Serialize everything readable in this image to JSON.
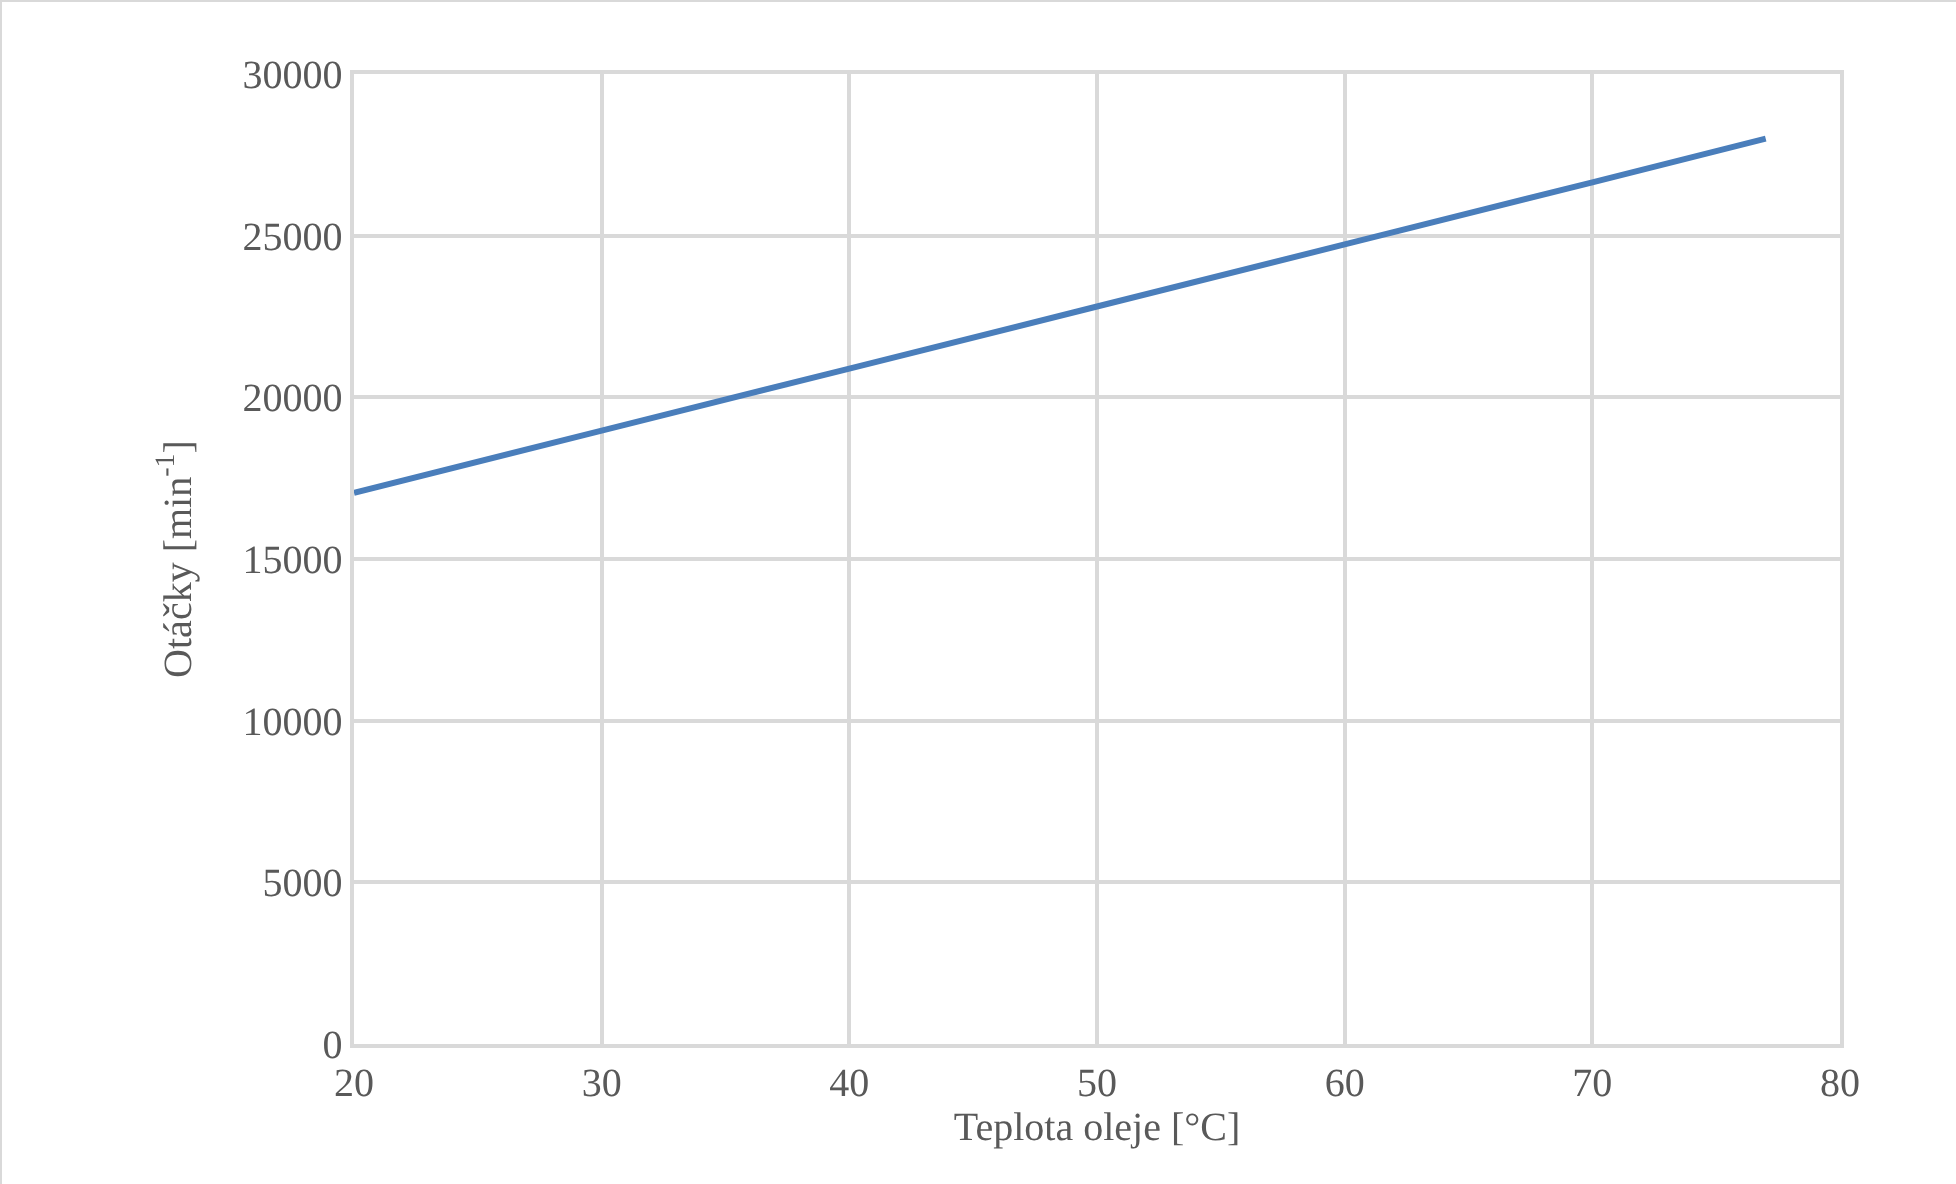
{
  "chart_data": {
    "type": "line",
    "xlabel": "Teplota oleje [°C]",
    "ylabel": "Otáčky [min$^{-1}$]",
    "x": [
      20,
      30,
      40,
      50,
      60,
      70,
      77
    ],
    "series": [
      {
        "color": "#4a7ebb",
        "values": [
          17050,
          18970,
          20890,
          22810,
          24730,
          26650,
          28000
        ]
      }
    ],
    "xlim": [
      20,
      80
    ],
    "xticks": [
      20,
      30,
      40,
      50,
      60,
      70,
      80
    ],
    "ylim": [
      0,
      30000
    ],
    "yticks": [
      0,
      5000,
      10000,
      15000,
      20000,
      25000,
      30000
    ],
    "grid": true,
    "marker": "none",
    "line_style": "solid"
  }
}
